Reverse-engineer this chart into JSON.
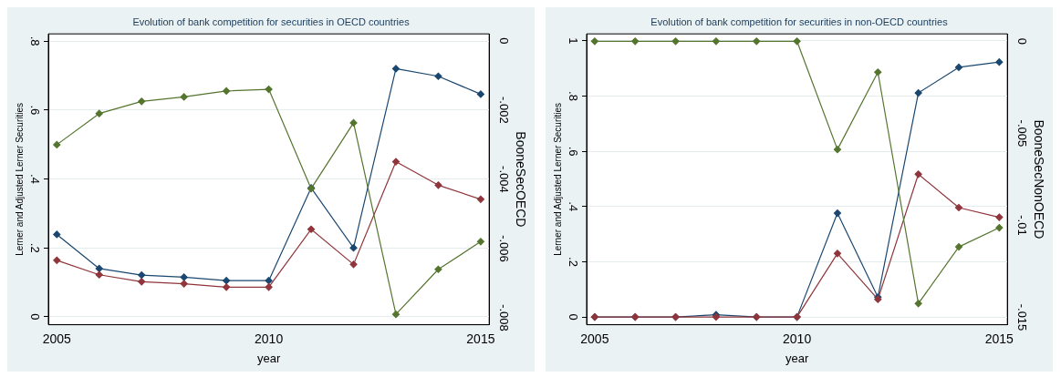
{
  "chart_data": [
    {
      "type": "line",
      "title": "Evolution of bank competition for securities in OECD countries",
      "xlabel": "year",
      "ylabel": "Lerner and Adjusted Lerner Securities",
      "y2label": "BooneSecOECD",
      "x": [
        2005,
        2006,
        2007,
        2008,
        2009,
        2010,
        2011,
        2012,
        2013,
        2014,
        2015
      ],
      "series": [
        {
          "color": "#1a476f",
          "values": [
            0.239,
            0.14,
            0.121,
            0.115,
            0.105,
            0.105,
            0.374,
            0.2,
            0.72,
            0.698,
            0.646
          ]
        },
        {
          "color": "#90353b",
          "values": [
            0.164,
            0.122,
            0.102,
            0.096,
            0.086,
            0.086,
            0.254,
            0.152,
            0.45,
            0.382,
            0.341
          ]
        },
        {
          "color": "#55752f",
          "axis": "y2",
          "values": [
            -0.003,
            -0.0021,
            -0.00175,
            -0.00162,
            -0.00145,
            -0.0014,
            -0.00427,
            -0.00237,
            -0.0079,
            -0.0066,
            -0.0058
          ]
        }
      ],
      "xlim": [
        2004.8,
        2015.2
      ],
      "xticks": [
        2005,
        2010,
        2015
      ],
      "ylim": [
        -0.023,
        0.821
      ],
      "yticks": [
        {
          "value": 0,
          "label": "0"
        },
        {
          "value": 0.2,
          "label": ".2"
        },
        {
          "value": 0.4,
          "label": ".4"
        },
        {
          "value": 0.6,
          "label": ".6"
        },
        {
          "value": 0.8,
          "label": ".8"
        }
      ],
      "y2lim": [
        -0.0082,
        0.0002
      ],
      "y2ticks": [
        {
          "value": -0.008,
          "label": "-.008"
        },
        {
          "value": -0.006,
          "label": "-.006"
        },
        {
          "value": -0.004,
          "label": "-.004"
        },
        {
          "value": -0.002,
          "label": "-.002"
        },
        {
          "value": 0,
          "label": "0"
        }
      ],
      "grid": "y",
      "legend": false,
      "marker": "diamond",
      "line_style": "solid"
    },
    {
      "type": "line",
      "title": "Evolution of bank competition for securities in non-OECD countries",
      "xlabel": "year",
      "ylabel": "Lerner and Adjusted Lerner Securities",
      "y2label": "BooneSecNonOECD",
      "x": [
        2005,
        2006,
        2007,
        2008,
        2009,
        2010,
        2011,
        2012,
        2013,
        2014,
        2015
      ],
      "series": [
        {
          "color": "#1a476f",
          "values": [
            0,
            0,
            0,
            0.008,
            0,
            0,
            0.376,
            0.072,
            0.811,
            0.904,
            0.923
          ]
        },
        {
          "color": "#90353b",
          "values": [
            0,
            0,
            0,
            0,
            0,
            0,
            0.23,
            0.064,
            0.517,
            0.396,
            0.361
          ]
        },
        {
          "color": "#55752f",
          "axis": "y2",
          "values": [
            0,
            0,
            0,
            0,
            0,
            0,
            -0.00588,
            -0.00168,
            -0.01425,
            -0.01117,
            -0.01013
          ]
        }
      ],
      "xlim": [
        2004.8,
        2015.2
      ],
      "xticks": [
        2005,
        2010,
        2015
      ],
      "ylim": [
        -0.028,
        1.025
      ],
      "yticks": [
        {
          "value": 0,
          "label": "0"
        },
        {
          "value": 0.2,
          "label": ".2"
        },
        {
          "value": 0.4,
          "label": ".4"
        },
        {
          "value": 0.6,
          "label": ".6"
        },
        {
          "value": 0.8,
          "label": ".8"
        },
        1
      ],
      "y2lim": [
        -0.0154,
        0.0004
      ],
      "y2ticks": [
        {
          "value": -0.015,
          "label": "-.015"
        },
        {
          "value": -0.01,
          "label": "-.01"
        },
        {
          "value": -0.005,
          "label": "-.005"
        },
        {
          "value": 0,
          "label": "0"
        }
      ],
      "grid": "y",
      "legend": false,
      "marker": "diamond",
      "line_style": "solid"
    }
  ]
}
